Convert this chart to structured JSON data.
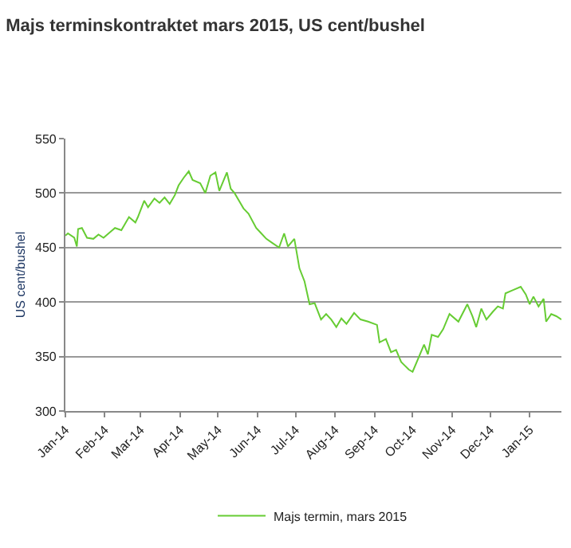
{
  "chart_data": {
    "type": "line",
    "title": "Majs terminskontraktet mars 2015, US cent/bushel",
    "ylabel": "US cent/bushel",
    "x": [
      "2014-01-01",
      "2014-01-03",
      "2014-01-08",
      "2014-01-10",
      "2014-01-11",
      "2014-01-14",
      "2014-01-18",
      "2014-01-23",
      "2014-01-27",
      "2014-01-31",
      "2014-02-06",
      "2014-02-09",
      "2014-02-14",
      "2014-02-20",
      "2014-02-25",
      "2014-02-27",
      "2014-03-04",
      "2014-03-07",
      "2014-03-12",
      "2014-03-16",
      "2014-03-20",
      "2014-03-24",
      "2014-03-28",
      "2014-03-31",
      "2014-04-04",
      "2014-04-08",
      "2014-04-11",
      "2014-04-17",
      "2014-04-21",
      "2014-04-25",
      "2014-04-29",
      "2014-05-02",
      "2014-05-08",
      "2014-05-11",
      "2014-05-14",
      "2014-05-21",
      "2014-05-25",
      "2014-05-31",
      "2014-06-04",
      "2014-06-08",
      "2014-06-13",
      "2014-06-18",
      "2014-06-22",
      "2014-06-25",
      "2014-06-30",
      "2014-07-04",
      "2014-07-08",
      "2014-07-12",
      "2014-07-16",
      "2014-07-21",
      "2014-07-25",
      "2014-07-29",
      "2014-08-02",
      "2014-08-06",
      "2014-08-10",
      "2014-08-16",
      "2014-08-21",
      "2014-08-27",
      "2014-09-03",
      "2014-09-05",
      "2014-09-10",
      "2014-09-14",
      "2014-09-18",
      "2014-09-22",
      "2014-09-28",
      "2014-10-01",
      "2014-10-05",
      "2014-10-10",
      "2014-10-13",
      "2014-10-16",
      "2014-10-21",
      "2014-10-25",
      "2014-10-30",
      "2014-11-06",
      "2014-11-13",
      "2014-11-17",
      "2014-11-20",
      "2014-11-24",
      "2014-11-28",
      "2014-12-03",
      "2014-12-07",
      "2014-12-11",
      "2014-12-13",
      "2014-12-19",
      "2014-12-25",
      "2014-12-29",
      "2015-01-01",
      "2015-01-04",
      "2015-01-08",
      "2015-01-12",
      "2015-01-14",
      "2015-01-18",
      "2015-01-22",
      "2015-01-26"
    ],
    "series": [
      {
        "name": "Majs termin, mars 2015",
        "color": "#66cc33",
        "values": [
          461,
          463,
          459,
          451,
          467,
          468,
          459,
          458,
          462,
          459,
          465,
          468,
          466,
          478,
          473,
          478,
          493,
          487,
          495,
          491,
          496,
          490,
          498,
          507,
          514,
          520,
          512,
          509,
          500,
          516,
          519,
          502,
          519,
          504,
          500,
          486,
          481,
          468,
          463,
          458,
          454,
          450,
          463,
          451,
          458,
          431,
          419,
          398,
          399,
          384,
          389,
          384,
          377,
          385,
          380,
          390,
          384,
          382,
          379,
          363,
          366,
          354,
          356,
          345,
          338,
          336,
          347,
          361,
          352,
          370,
          368,
          375,
          389,
          382,
          398,
          387,
          377,
          394,
          384,
          391,
          396,
          394,
          408,
          411,
          414,
          407,
          398,
          405,
          396,
          403,
          382,
          389,
          387,
          384
        ]
      }
    ],
    "xlim": [
      "2014-01-01",
      "2015-01-26"
    ],
    "xticks": [
      {
        "value": "2014-01-01",
        "label": "Jan-14"
      },
      {
        "value": "2014-02-01",
        "label": "Feb-14"
      },
      {
        "value": "2014-03-01",
        "label": "Mar-14"
      },
      {
        "value": "2014-04-01",
        "label": "Apr-14"
      },
      {
        "value": "2014-05-01",
        "label": "May-14"
      },
      {
        "value": "2014-06-01",
        "label": "Jun-14"
      },
      {
        "value": "2014-07-01",
        "label": "Jul-14"
      },
      {
        "value": "2014-08-01",
        "label": "Aug-14"
      },
      {
        "value": "2014-09-01",
        "label": "Sep-14"
      },
      {
        "value": "2014-10-01",
        "label": "Oct-14"
      },
      {
        "value": "2014-11-01",
        "label": "Nov-14"
      },
      {
        "value": "2014-12-01",
        "label": "Dec-14"
      },
      {
        "value": "2015-01-01",
        "label": "Jan-15"
      }
    ],
    "ylim": [
      300,
      550
    ],
    "yticks": [
      300,
      350,
      400,
      450,
      500,
      550
    ],
    "grid": "y",
    "legend": "bottom",
    "marker": "none",
    "line_style": "solid"
  }
}
